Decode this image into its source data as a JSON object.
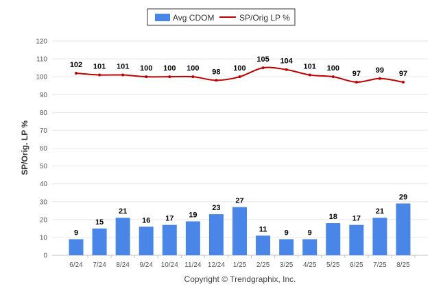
{
  "chart_data": {
    "type": "bar",
    "ylabel": "SP/Orig. LP %",
    "xlabel": "",
    "ylim": [
      0,
      120
    ],
    "yticks": [
      0,
      10,
      20,
      30,
      40,
      50,
      60,
      70,
      80,
      90,
      100,
      110,
      120
    ],
    "grid": true,
    "legend_position": "top-center",
    "categories": [
      "6/24",
      "7/24",
      "8/24",
      "9/24",
      "10/24",
      "11/24",
      "12/24",
      "1/25",
      "2/25",
      "3/25",
      "4/25",
      "5/25",
      "6/25",
      "7/25",
      "8/25"
    ],
    "series": [
      {
        "name": "Avg CDOM",
        "type": "bar",
        "color": "#4a86e8",
        "values": [
          9,
          15,
          21,
          16,
          17,
          19,
          23,
          27,
          11,
          9,
          9,
          18,
          17,
          21,
          29
        ]
      },
      {
        "name": "SP/Orig LP %",
        "type": "line",
        "color": "#c00000",
        "values": [
          102,
          101,
          101,
          100,
          100,
          100,
          98,
          100,
          105,
          104,
          101,
          100,
          97,
          99,
          97
        ]
      }
    ]
  },
  "footer": {
    "copyright": "Copyright © Trendgraphix, Inc."
  },
  "colors": {
    "grid": "#e6e6e6",
    "axis": "#c0c0c0",
    "legend_border": "#333333"
  }
}
